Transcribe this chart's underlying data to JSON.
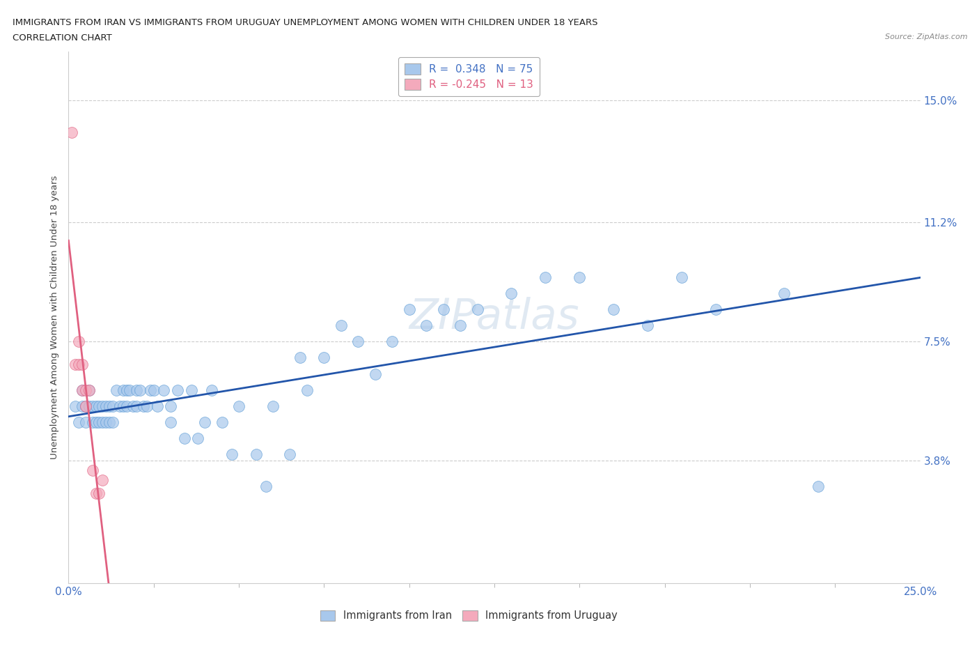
{
  "title_line1": "IMMIGRANTS FROM IRAN VS IMMIGRANTS FROM URUGUAY UNEMPLOYMENT AMONG WOMEN WITH CHILDREN UNDER 18 YEARS",
  "title_line2": "CORRELATION CHART",
  "source": "Source: ZipAtlas.com",
  "xlim": [
    0.0,
    0.25
  ],
  "ylim": [
    0.0,
    0.165
  ],
  "ylabel": "Unemployment Among Women with Children Under 18 years",
  "iran_R": 0.348,
  "iran_N": 75,
  "uruguay_R": -0.245,
  "uruguay_N": 13,
  "iran_color": "#A8C8EC",
  "iran_edge": "#5B9BD5",
  "uruguay_color": "#F4AABC",
  "uruguay_edge": "#E06080",
  "trendline_iran_color": "#2255AA",
  "trendline_uruguay_solid": "#E06080",
  "trendline_uruguay_dashed": "#F4AABC",
  "grid_color": "#CCCCCC",
  "ytick_vals": [
    0.038,
    0.075,
    0.112,
    0.15
  ],
  "ytick_labels": [
    "3.8%",
    "7.5%",
    "11.2%",
    "15.0%"
  ],
  "iran_x": [
    0.002,
    0.003,
    0.004,
    0.004,
    0.005,
    0.005,
    0.006,
    0.006,
    0.007,
    0.007,
    0.008,
    0.008,
    0.009,
    0.009,
    0.01,
    0.01,
    0.011,
    0.011,
    0.012,
    0.012,
    0.013,
    0.013,
    0.014,
    0.015,
    0.016,
    0.016,
    0.017,
    0.017,
    0.018,
    0.019,
    0.02,
    0.02,
    0.021,
    0.022,
    0.023,
    0.024,
    0.025,
    0.026,
    0.028,
    0.03,
    0.03,
    0.032,
    0.034,
    0.036,
    0.038,
    0.04,
    0.042,
    0.045,
    0.048,
    0.05,
    0.055,
    0.058,
    0.06,
    0.065,
    0.068,
    0.07,
    0.075,
    0.08,
    0.085,
    0.09,
    0.095,
    0.1,
    0.105,
    0.11,
    0.115,
    0.12,
    0.13,
    0.14,
    0.15,
    0.16,
    0.17,
    0.18,
    0.19,
    0.21,
    0.22
  ],
  "iran_y": [
    0.055,
    0.05,
    0.06,
    0.055,
    0.055,
    0.05,
    0.06,
    0.055,
    0.055,
    0.05,
    0.05,
    0.055,
    0.05,
    0.055,
    0.05,
    0.055,
    0.05,
    0.055,
    0.055,
    0.05,
    0.055,
    0.05,
    0.06,
    0.055,
    0.06,
    0.055,
    0.055,
    0.06,
    0.06,
    0.055,
    0.06,
    0.055,
    0.06,
    0.055,
    0.055,
    0.06,
    0.06,
    0.055,
    0.06,
    0.05,
    0.055,
    0.06,
    0.045,
    0.06,
    0.045,
    0.05,
    0.06,
    0.05,
    0.04,
    0.055,
    0.04,
    0.03,
    0.055,
    0.04,
    0.07,
    0.06,
    0.07,
    0.08,
    0.075,
    0.065,
    0.075,
    0.085,
    0.08,
    0.085,
    0.08,
    0.085,
    0.09,
    0.095,
    0.095,
    0.085,
    0.08,
    0.095,
    0.085,
    0.09,
    0.03
  ],
  "uruguay_x": [
    0.001,
    0.002,
    0.003,
    0.003,
    0.004,
    0.004,
    0.005,
    0.005,
    0.006,
    0.007,
    0.008,
    0.009,
    0.01
  ],
  "uruguay_y": [
    0.14,
    0.068,
    0.075,
    0.068,
    0.068,
    0.06,
    0.06,
    0.055,
    0.06,
    0.035,
    0.028,
    0.028,
    0.032
  ]
}
